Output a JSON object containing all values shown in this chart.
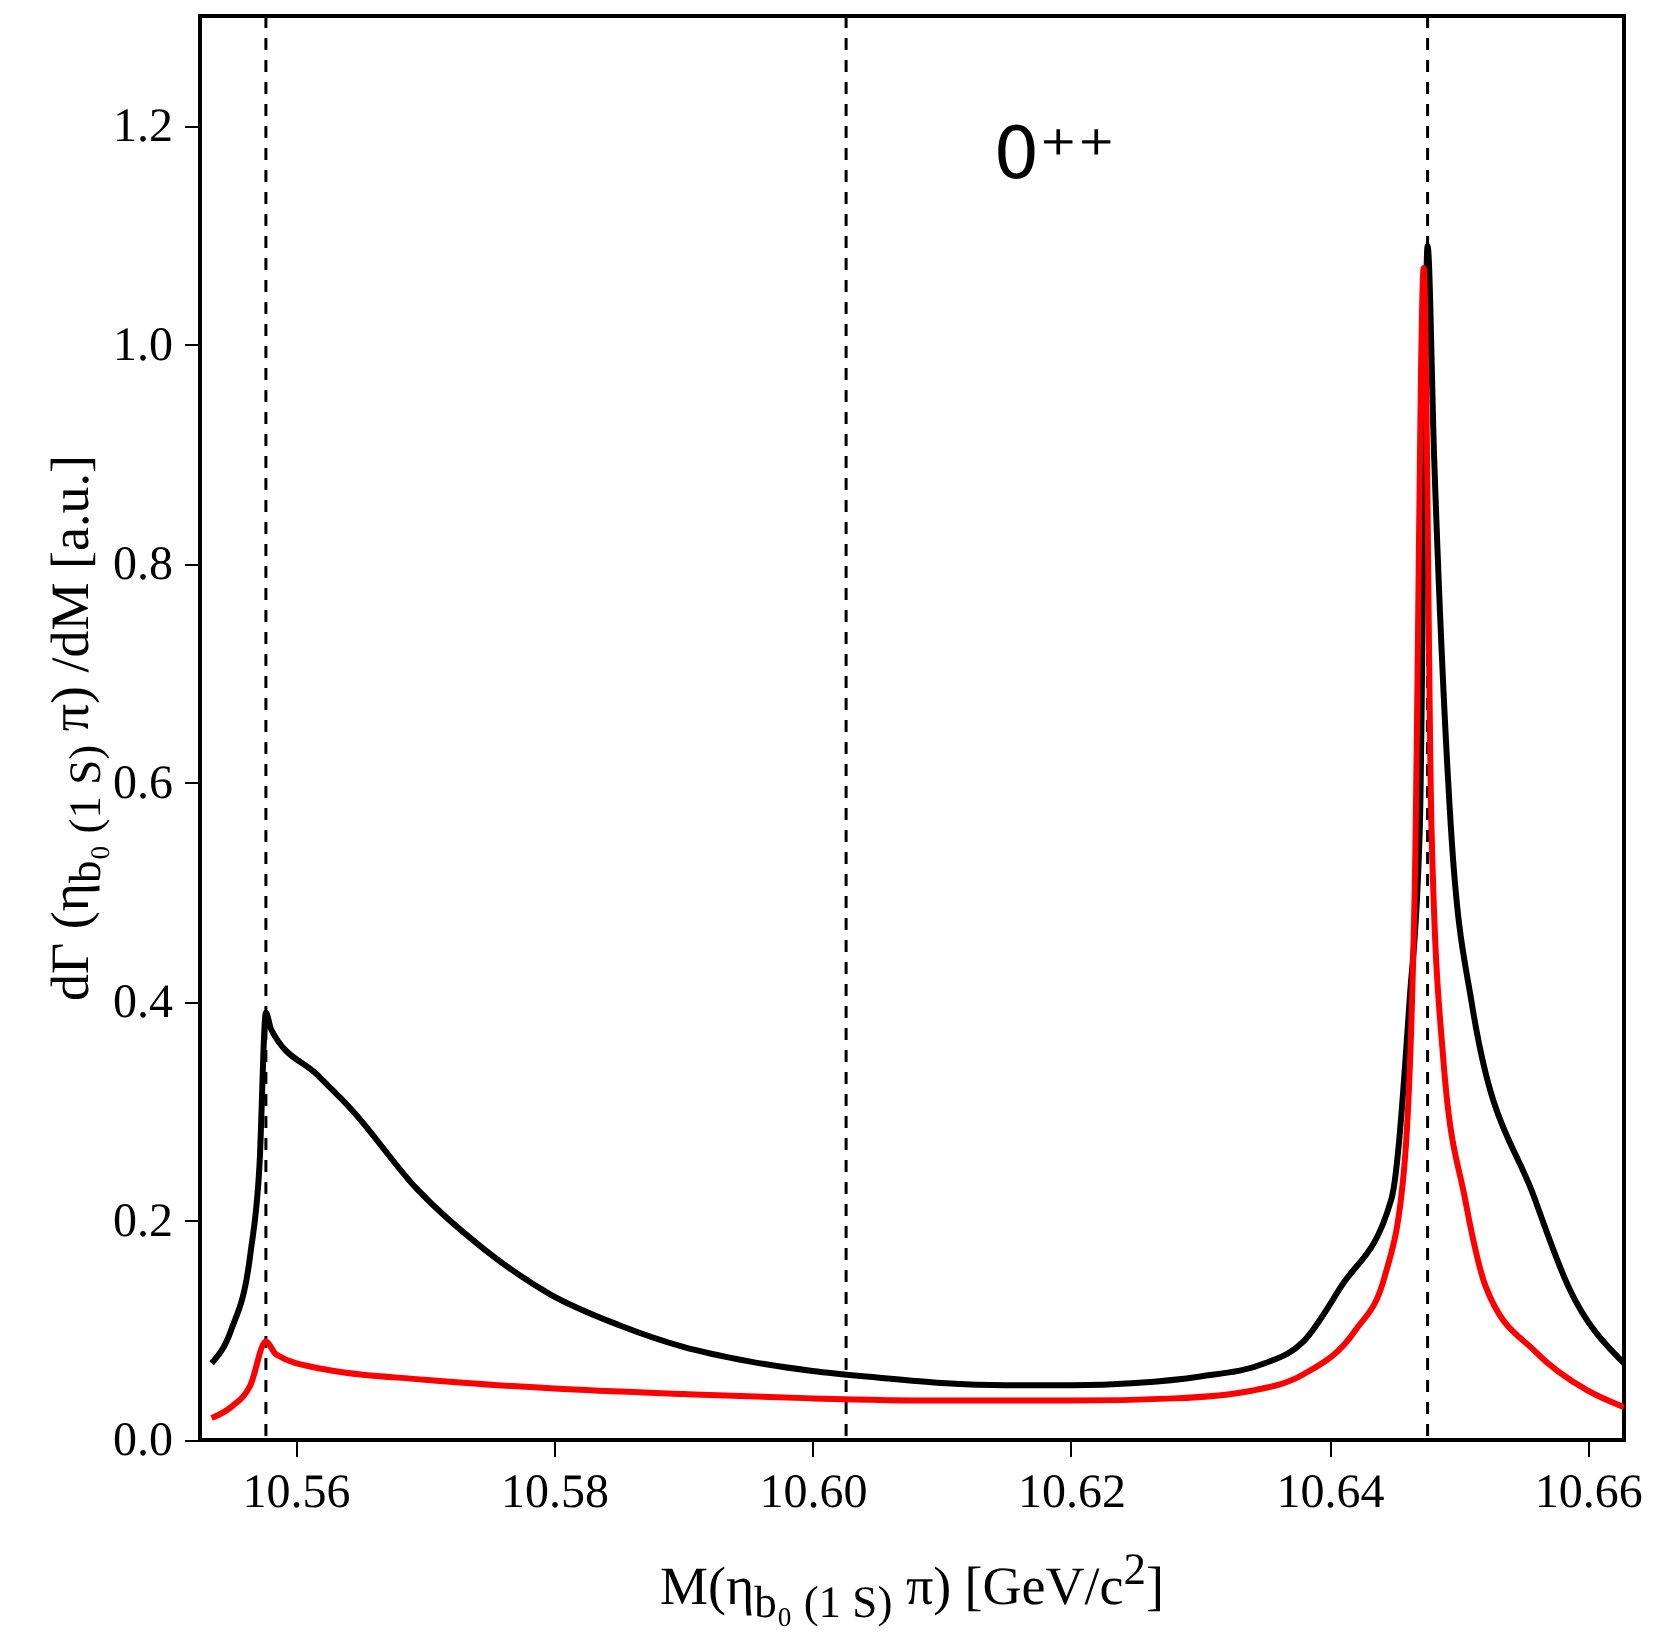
{
  "chart_data": {
    "type": "line",
    "xlabel": "M(η$_{b₀ (1 S)}$ π)  [GeV/c$^{2}$]",
    "ylabel": "dΓ (η$_{b₀ (1 S)}$ π) /dM   [a.u.]",
    "annotations": [
      "0⁺⁺"
    ],
    "xlim": [
      10.5526,
      10.6628
    ],
    "xticks": [
      10.56,
      10.58,
      {
        "value": 10.6,
        "label": "10.60"
      },
      10.62,
      10.64,
      10.66
    ],
    "ylim": [
      0,
      1.3
    ],
    "yticks": [
      {
        "value": 0,
        "label": "0.0"
      },
      0.2,
      0.4,
      0.6,
      0.8,
      {
        "value": 1,
        "label": "1.0"
      },
      1.2
    ],
    "grid": false,
    "line_style": "solid",
    "ref_lines": [
      {
        "axis": "x",
        "value": 10.5577,
        "line_style": "dashed"
      },
      {
        "axis": "x",
        "value": 10.6026,
        "line_style": "dashed"
      },
      {
        "axis": "x",
        "value": 10.6476,
        "line_style": "dashed"
      }
    ],
    "series": [
      {
        "color": "#000000",
        "x": [
          10.5535,
          10.555,
          10.5565,
          10.5572,
          10.5577,
          10.5581,
          10.5617,
          10.5643,
          10.5694,
          10.5745,
          10.5797,
          10.585,
          10.59,
          10.595,
          10.6,
          10.605,
          10.61,
          10.615,
          10.62,
          10.625,
          10.63,
          10.635,
          10.638,
          10.6409,
          10.6448,
          10.6462,
          10.647,
          10.6476,
          10.6481,
          10.6494,
          10.651,
          10.6559,
          10.6585,
          10.6628
        ],
        "values": [
          0.07,
          0.1,
          0.17,
          0.25,
          0.39,
          0.375,
          0.333,
          0.302,
          0.229,
          0.175,
          0.133,
          0.105,
          0.085,
          0.072,
          0.063,
          0.057,
          0.052,
          0.05,
          0.05,
          0.052,
          0.058,
          0.07,
          0.09,
          0.14,
          0.22,
          0.4,
          0.56,
          1.09,
          0.9,
          0.56,
          0.4,
          0.22,
          0.14,
          0.07
        ]
      },
      {
        "color": "#ff0000",
        "x": [
          10.5535,
          10.555,
          10.5565,
          10.5577,
          10.5585,
          10.562,
          10.57,
          10.58,
          10.59,
          10.6,
          10.61,
          10.62,
          10.628,
          10.634,
          10.638,
          10.642,
          10.6443,
          10.6458,
          10.6466,
          10.6473,
          10.6479,
          10.6488,
          10.6505,
          10.6521,
          10.656,
          10.66,
          10.6628
        ],
        "values": [
          0.02,
          0.03,
          0.05,
          0.09,
          0.078,
          0.065,
          0.055,
          0.047,
          0.042,
          0.038,
          0.036,
          0.036,
          0.038,
          0.045,
          0.06,
          0.1,
          0.15,
          0.25,
          0.5,
          1.07,
          0.56,
          0.35,
          0.22,
          0.14,
          0.08,
          0.045,
          0.03
        ]
      }
    ]
  }
}
